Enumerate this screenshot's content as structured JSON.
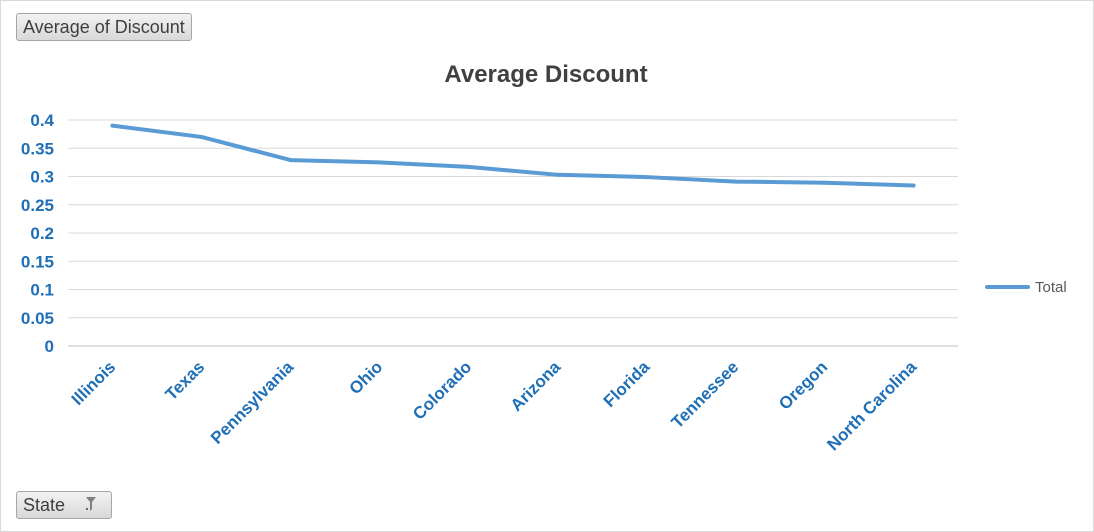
{
  "pivot_fields": {
    "value_field": "Average of Discount",
    "axis_field": "State"
  },
  "chart_data": {
    "type": "line",
    "title": "Average Discount",
    "xlabel": "",
    "ylabel": "",
    "categories": [
      "Illinois",
      "Texas",
      "Pennsylvania",
      "Ohio",
      "Colorado",
      "Arizona",
      "Florida",
      "Tennessee",
      "Oregon",
      "North Carolina"
    ],
    "series": [
      {
        "name": "Total",
        "color": "#5b9bd5",
        "values": [
          0.39,
          0.37,
          0.329,
          0.325,
          0.317,
          0.303,
          0.299,
          0.291,
          0.289,
          0.284
        ]
      }
    ],
    "ylim": [
      0,
      0.4
    ],
    "yticks": [
      "0",
      "0.05",
      "0.1",
      "0.15",
      "0.2",
      "0.25",
      "0.3",
      "0.35",
      "0.4"
    ],
    "grid": true,
    "legend_position": "right"
  }
}
